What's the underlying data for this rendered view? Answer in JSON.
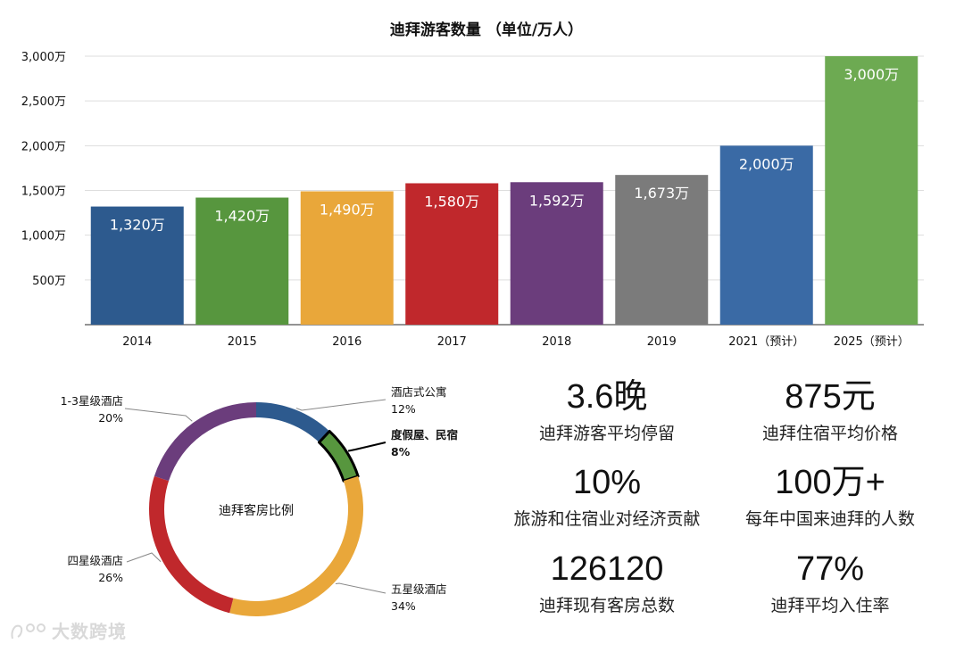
{
  "chart_data": [
    {
      "type": "bar",
      "title": "迪拜游客数量 （单位/万人）",
      "categories": [
        "2014",
        "2015",
        "2016",
        "2017",
        "2018",
        "2019",
        "2021（预计）",
        "2025（预计）"
      ],
      "values": [
        1320,
        1420,
        1490,
        1580,
        1592,
        1673,
        2000,
        3000
      ],
      "data_labels": [
        "1,320万",
        "1,420万",
        "1,490万",
        "1,580万",
        "1,592万",
        "1,673万",
        "2,000万",
        "3,000万"
      ],
      "colors": [
        "#2d5a8e",
        "#57963e",
        "#e9a73a",
        "#c0282c",
        "#6b3d7c",
        "#7b7b7b",
        "#3a6aa5",
        "#6daa52"
      ],
      "ylim": [
        0,
        3000
      ],
      "yticks": [
        500,
        1000,
        1500,
        2000,
        2500,
        3000
      ],
      "ytick_labels": [
        "500万",
        "1,000万",
        "1,500万",
        "2,000万",
        "2,500万",
        "3,000万"
      ],
      "grid": true,
      "xlabel": "",
      "ylabel": ""
    },
    {
      "type": "pie",
      "variant": "donut",
      "center_label": "迪拜客房比例",
      "slices": [
        {
          "name": "酒店式公寓",
          "value": 12,
          "label": "12%",
          "color": "#2d5a8e"
        },
        {
          "name": "度假屋、民宿",
          "value": 8,
          "label": "8%",
          "color": "#57963e",
          "highlight": true
        },
        {
          "name": "五星级酒店",
          "value": 34,
          "label": "34%",
          "color": "#e9a73a"
        },
        {
          "name": "四星级酒店",
          "value": 26,
          "label": "26%",
          "color": "#c0282c"
        },
        {
          "name": "1-3星级酒店",
          "value": 20,
          "label": "20%",
          "color": "#6b3d7c"
        }
      ]
    }
  ],
  "stats": [
    {
      "value": "3.6晚",
      "label": "迪拜游客平均停留"
    },
    {
      "value": "875元",
      "label": "迪拜住宿平均价格"
    },
    {
      "value": "10%",
      "label": "旅游和住宿业对经济贡献"
    },
    {
      "value": "100万+",
      "label": "每年中国来迪拜的人数"
    },
    {
      "value": "126120",
      "label": "迪拜现有客房总数"
    },
    {
      "value": "77%",
      "label": "迪拜平均入住率"
    }
  ],
  "watermark": "大数跨境"
}
